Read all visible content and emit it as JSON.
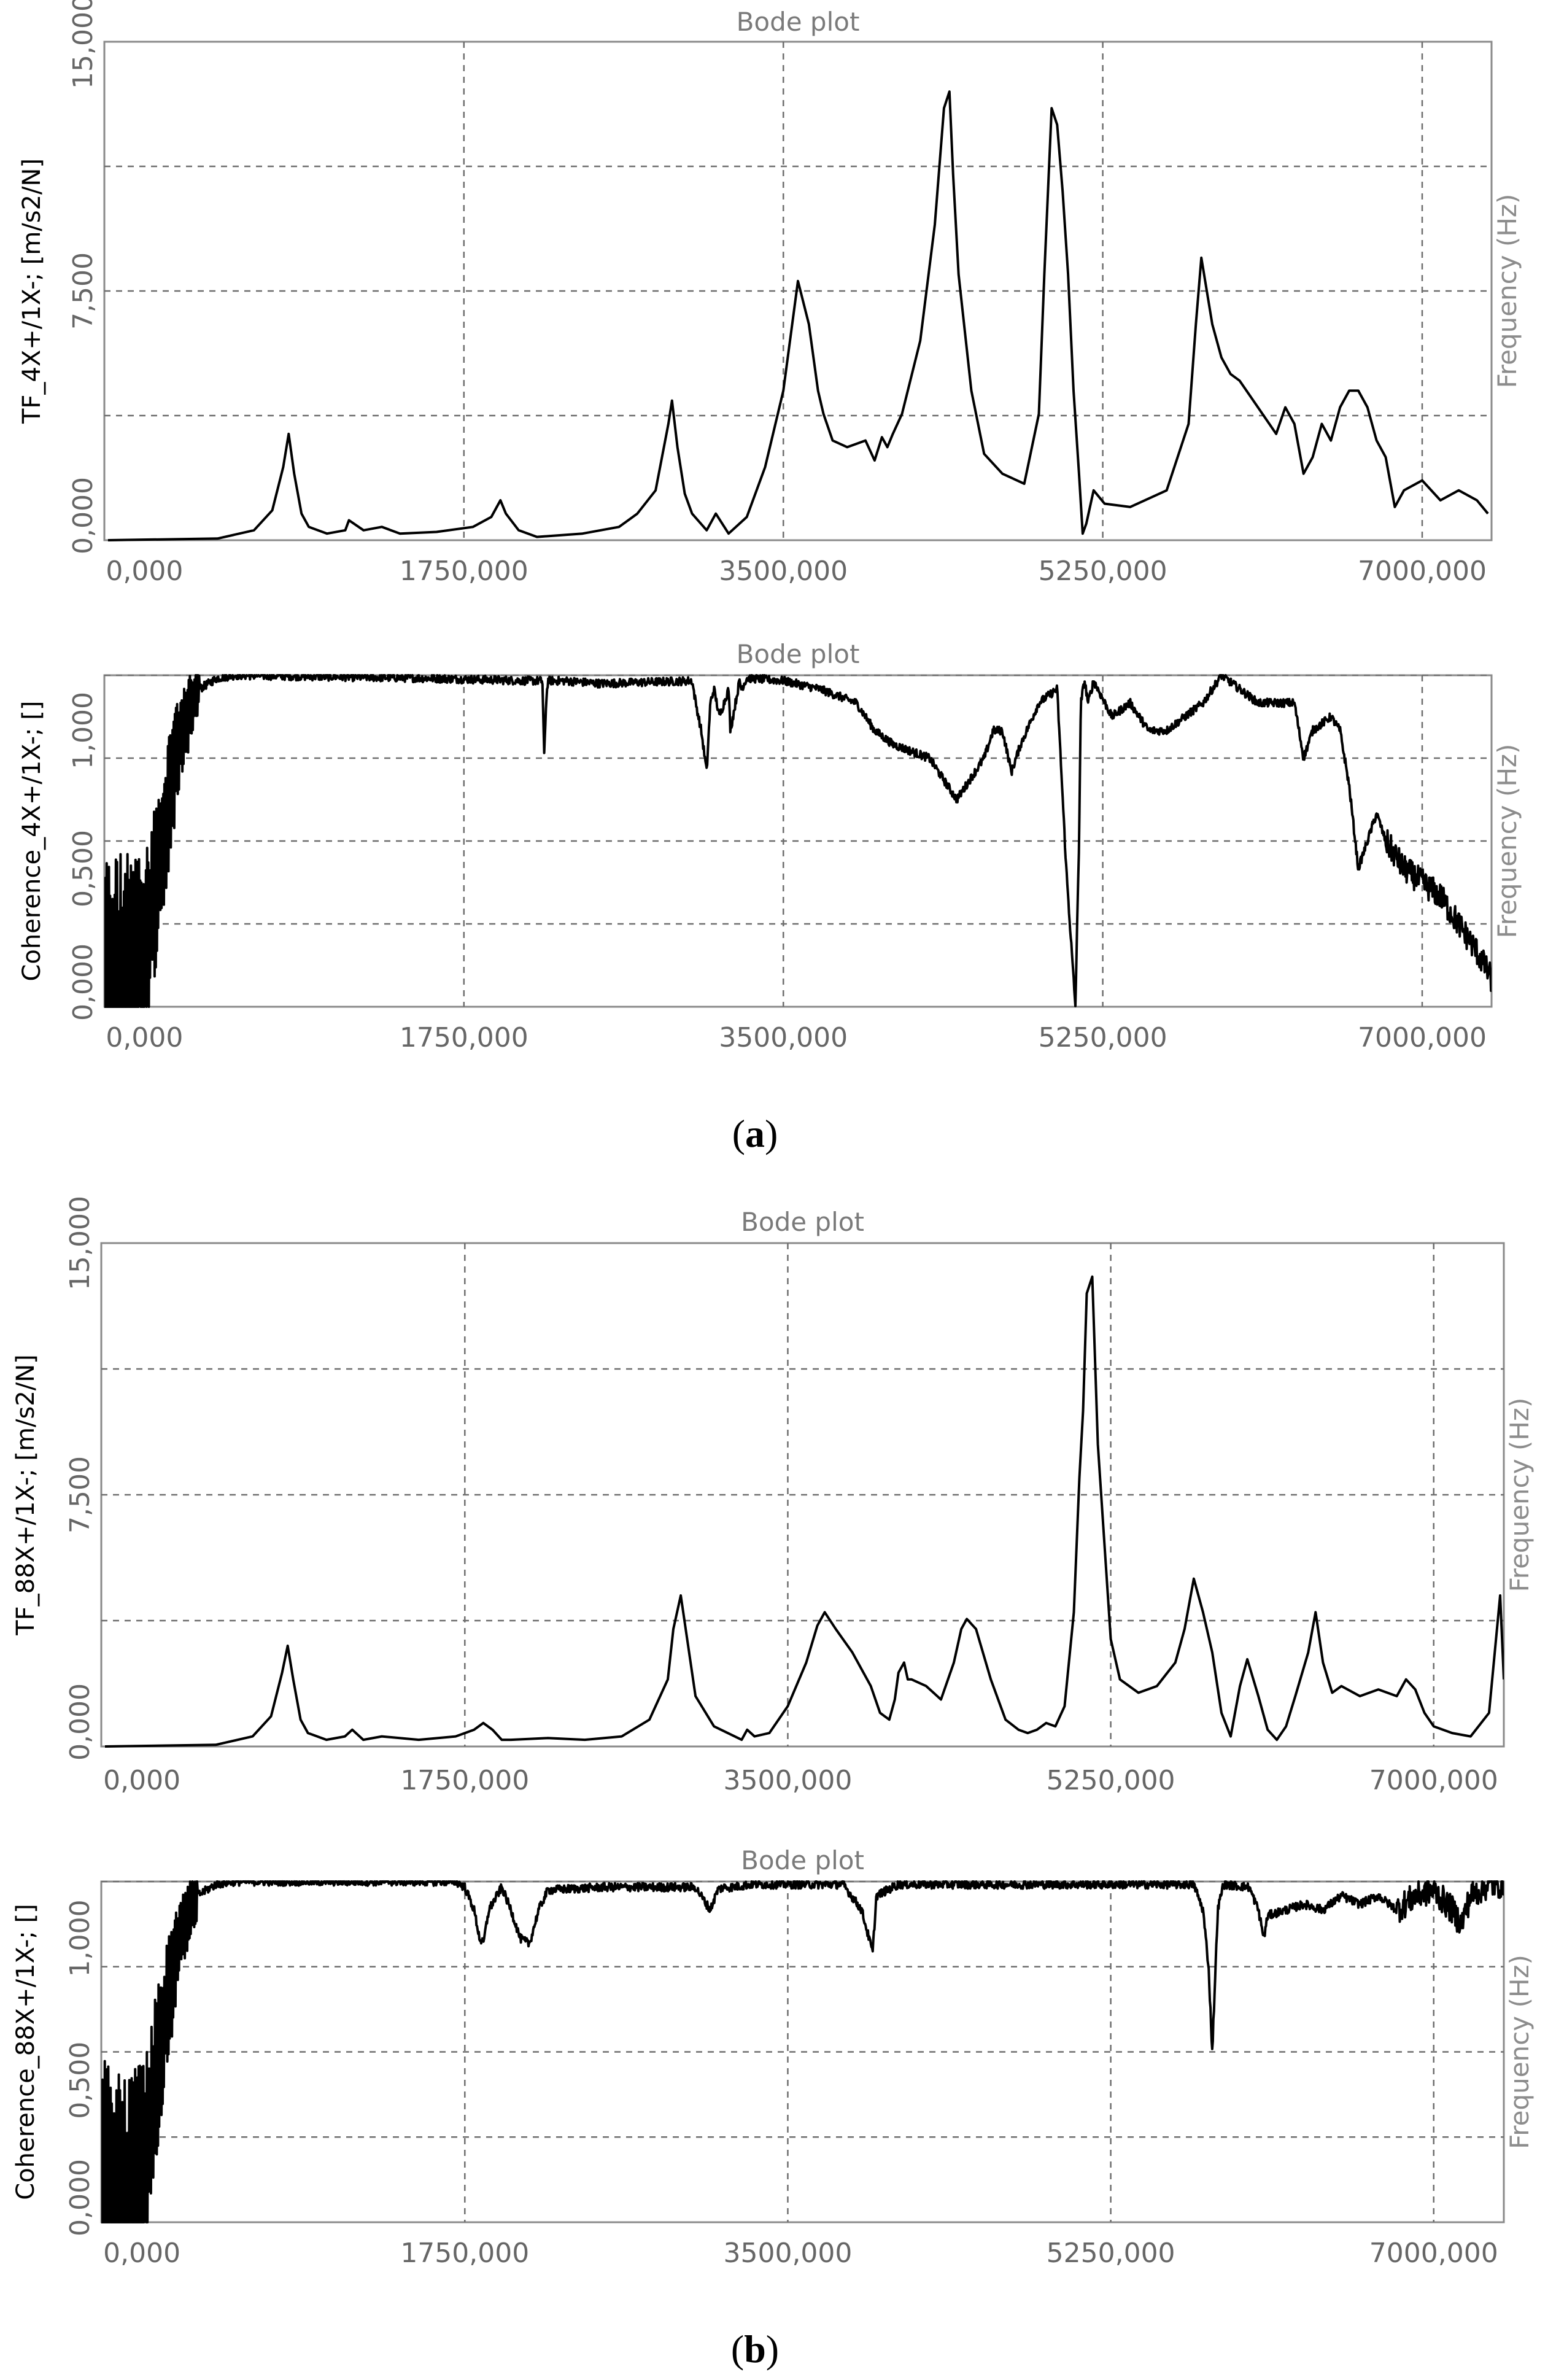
{
  "panels": [
    {
      "id": "a1",
      "title": "Bode plot",
      "ylabel": "TF_4X+/1X-; [m/s2/N]",
      "side_label": "Frequency (Hz)",
      "yticks": [
        "0,000",
        "7,500",
        "15,000"
      ],
      "ytick_values": [
        0,
        7.5,
        15
      ],
      "ylim": [
        0,
        15
      ],
      "xticks": [
        "0,000",
        "1750,000",
        "3500,000",
        "5250,000",
        "7000,000"
      ],
      "xtick_values": [
        0,
        1750,
        3500,
        5250,
        7000
      ],
      "xlim": [
        -220,
        7380
      ],
      "ygrid": [
        3.75,
        7.5,
        11.25
      ],
      "style": "smooth",
      "series": [
        {
          "x": [
            -200,
            400,
            600,
            700,
            760,
            790,
            820,
            860,
            900,
            1000,
            1100,
            1120,
            1200,
            1300,
            1400,
            1600,
            1800,
            1900,
            1950,
            1980,
            2050,
            2150,
            2400,
            2600,
            2700,
            2800,
            2870,
            2890,
            2920,
            2960,
            3000,
            3080,
            3130,
            3200,
            3300,
            3400,
            3500,
            3580,
            3640,
            3690,
            3720,
            3770,
            3850,
            3950,
            4000,
            4040,
            4070,
            4100,
            4150,
            4250,
            4330,
            4380,
            4410,
            4430,
            4460,
            4530,
            4600,
            4700,
            4820,
            4900,
            4930,
            4970,
            5000,
            5030,
            5060,
            5090,
            5120,
            5140,
            5160,
            5200,
            5260,
            5400,
            5600,
            5720,
            5760,
            5790,
            5850,
            5900,
            5950,
            6000,
            6100,
            6200,
            6250,
            6300,
            6350,
            6400,
            6450,
            6500,
            6550,
            6600,
            6650,
            6700,
            6750,
            6800,
            6850,
            6900,
            7000,
            7100,
            7200,
            7300,
            7360
          ],
          "y": [
            0,
            0.05,
            0.3,
            0.9,
            2.2,
            3.2,
            2.0,
            0.8,
            0.4,
            0.2,
            0.3,
            0.6,
            0.3,
            0.4,
            0.2,
            0.25,
            0.4,
            0.7,
            1.2,
            0.8,
            0.3,
            0.1,
            0.2,
            0.4,
            0.8,
            1.5,
            3.5,
            4.2,
            2.8,
            1.4,
            0.8,
            0.3,
            0.8,
            0.2,
            0.7,
            2.2,
            4.5,
            7.8,
            6.5,
            4.5,
            3.8,
            3.0,
            2.8,
            3.0,
            2.4,
            3.1,
            2.8,
            3.2,
            3.8,
            6.0,
            9.5,
            13.0,
            13.5,
            11.0,
            8.0,
            4.5,
            2.6,
            2.0,
            1.7,
            3.8,
            8.0,
            13.0,
            12.5,
            10.5,
            8.0,
            4.5,
            2.0,
            0.2,
            0.5,
            1.5,
            1.1,
            1.0,
            1.5,
            3.5,
            6.5,
            8.5,
            6.5,
            5.5,
            5.0,
            4.8,
            4.0,
            3.2,
            4.0,
            3.5,
            2.0,
            2.5,
            3.5,
            3.0,
            4.0,
            4.5,
            4.5,
            4.0,
            3.0,
            2.5,
            1.0,
            1.5,
            1.8,
            1.2,
            1.5,
            1.2,
            0.8
          ]
        }
      ]
    },
    {
      "id": "a2",
      "title": "Bode plot",
      "ylabel": "Coherence_4X+/1X-; []",
      "side_label": "Frequency (Hz)",
      "yticks": [
        "0,000",
        "0,500",
        "1,000"
      ],
      "ytick_values": [
        0,
        0.5,
        1.0
      ],
      "ylim": [
        0,
        1.2
      ],
      "xticks": [
        "0,000",
        "1750,000",
        "3500,000",
        "5250,000",
        "7000,000"
      ],
      "xtick_values": [
        0,
        1750,
        3500,
        5250,
        7000
      ],
      "xlim": [
        -220,
        7380
      ],
      "ygrid": [
        0.3,
        0.6,
        0.9,
        1.2
      ],
      "style": "noisy",
      "series": [
        {
          "x": [
            -220,
            -100,
            0,
            50,
            100,
            150,
            200,
            300,
            400,
            500,
            1500,
            2100,
            2180,
            2190,
            2200,
            2210,
            2300,
            2500,
            3000,
            3020,
            3050,
            3080,
            3100,
            3120,
            3150,
            3200,
            3210,
            3260,
            3270,
            3300,
            3500,
            3700,
            3900,
            4000,
            4100,
            4300,
            4400,
            4450,
            4500,
            4600,
            4650,
            4700,
            4750,
            4800,
            4900,
            5000,
            5050,
            5100,
            5120,
            5130,
            5150,
            5170,
            5200,
            5300,
            5400,
            5500,
            5600,
            5700,
            5800,
            5900,
            6000,
            6100,
            6200,
            6300,
            6350,
            6400,
            6500,
            6550,
            6600,
            6650,
            6700,
            6750,
            6800,
            6900,
            7000,
            7100,
            7200,
            7300,
            7380
          ],
          "y": [
            0.0,
            0.1,
            0.2,
            0.4,
            0.6,
            0.8,
            1.0,
            1.15,
            1.19,
            1.2,
            1.19,
            1.18,
            1.18,
            0.9,
            1.1,
            1.18,
            1.18,
            1.17,
            1.18,
            1.1,
            1.0,
            0.85,
            1.1,
            1.15,
            1.05,
            1.15,
            1.0,
            1.18,
            1.15,
            1.19,
            1.18,
            1.15,
            1.1,
            1.0,
            0.95,
            0.9,
            0.8,
            0.75,
            0.8,
            0.9,
            1.0,
            1.0,
            0.85,
            0.95,
            1.1,
            1.15,
            0.5,
            0.0,
            0.6,
            1.1,
            1.18,
            1.1,
            1.18,
            1.05,
            1.1,
            1.0,
            1.0,
            1.05,
            1.1,
            1.2,
            1.15,
            1.1,
            1.1,
            1.1,
            0.9,
            1.0,
            1.05,
            1.0,
            0.8,
            0.5,
            0.6,
            0.7,
            0.6,
            0.5,
            0.45,
            0.4,
            0.3,
            0.2,
            0.1
          ]
        }
      ]
    },
    {
      "id": "b1",
      "title": "Bode plot",
      "ylabel": "TF_88X+/1X-; [m/s2/N]",
      "side_label": "Frequency (Hz)",
      "yticks": [
        "0,000",
        "7,500",
        "15,000"
      ],
      "ytick_values": [
        0,
        7.5,
        15
      ],
      "ylim": [
        0,
        15
      ],
      "xticks": [
        "0,000",
        "1750,000",
        "3500,000",
        "5250,000",
        "7000,000"
      ],
      "xtick_values": [
        0,
        1750,
        3500,
        5250,
        7000
      ],
      "xlim": [
        -220,
        7380
      ],
      "ygrid": [
        3.75,
        7.5,
        11.25
      ],
      "style": "smooth",
      "series": [
        {
          "x": [
            -200,
            400,
            600,
            700,
            760,
            790,
            820,
            860,
            900,
            1000,
            1100,
            1140,
            1200,
            1300,
            1500,
            1700,
            1800,
            1850,
            1900,
            1950,
            2000,
            2200,
            2400,
            2600,
            2750,
            2850,
            2880,
            2920,
            2960,
            3000,
            3100,
            3250,
            3280,
            3320,
            3400,
            3500,
            3600,
            3660,
            3700,
            3760,
            3850,
            3950,
            4000,
            4050,
            4080,
            4100,
            4130,
            4150,
            4170,
            4250,
            4330,
            4400,
            4440,
            4470,
            4520,
            4600,
            4680,
            4750,
            4800,
            4850,
            4900,
            4950,
            5000,
            5050,
            5080,
            5100,
            5120,
            5150,
            5180,
            5250,
            5300,
            5400,
            5500,
            5600,
            5650,
            5700,
            5750,
            5800,
            5850,
            5900,
            5950,
            5990,
            6050,
            6100,
            6150,
            6200,
            6250,
            6320,
            6360,
            6400,
            6450,
            6500,
            6600,
            6700,
            6800,
            6850,
            6900,
            6950,
            7000,
            7100,
            7200,
            7300,
            7360,
            7380
          ],
          "y": [
            0,
            0.05,
            0.3,
            0.9,
            2.2,
            3.0,
            2.0,
            0.8,
            0.4,
            0.2,
            0.3,
            0.5,
            0.2,
            0.3,
            0.2,
            0.3,
            0.5,
            0.7,
            0.5,
            0.2,
            0.2,
            0.25,
            0.2,
            0.3,
            0.8,
            2.0,
            3.5,
            4.5,
            3.0,
            1.5,
            0.6,
            0.2,
            0.5,
            0.3,
            0.4,
            1.2,
            2.5,
            3.6,
            4.0,
            3.5,
            2.8,
            1.8,
            1.0,
            0.8,
            1.4,
            2.2,
            2.5,
            2.0,
            2.0,
            1.8,
            1.4,
            2.5,
            3.5,
            3.8,
            3.5,
            2.0,
            0.8,
            0.5,
            0.4,
            0.5,
            0.7,
            0.6,
            1.2,
            4.0,
            8.0,
            10.0,
            13.5,
            14.0,
            9.0,
            3.2,
            2.0,
            1.6,
            1.8,
            2.5,
            3.5,
            5.0,
            4.0,
            2.8,
            1.0,
            0.3,
            1.8,
            2.6,
            1.5,
            0.5,
            0.2,
            0.6,
            1.5,
            2.8,
            4.0,
            2.5,
            1.6,
            1.8,
            1.5,
            1.7,
            1.5,
            2.0,
            1.7,
            1.0,
            0.6,
            0.4,
            0.3,
            1.0,
            4.5,
            2.0
          ]
        }
      ]
    },
    {
      "id": "b2",
      "title": "Bode plot",
      "ylabel": "Coherence_88X+/1X-; []",
      "side_label": "Frequency (Hz)",
      "yticks": [
        "0,000",
        "0,500",
        "1,000"
      ],
      "ytick_values": [
        0,
        0.5,
        1.0
      ],
      "ylim": [
        0,
        1.2
      ],
      "xticks": [
        "0,000",
        "1750,000",
        "3500,000",
        "5250,000",
        "7000,000"
      ],
      "xtick_values": [
        0,
        1750,
        3500,
        5250,
        7000
      ],
      "xlim": [
        -220,
        7380
      ],
      "ygrid": [
        0.3,
        0.6,
        0.9,
        1.2
      ],
      "style": "noisy",
      "series": [
        {
          "x": [
            -220,
            -100,
            0,
            50,
            100,
            150,
            200,
            300,
            400,
            500,
            1700,
            1750,
            1800,
            1830,
            1850,
            1880,
            1950,
            2000,
            2050,
            2100,
            2150,
            2200,
            2500,
            3000,
            3080,
            3120,
            3150,
            3200,
            3300,
            3500,
            3800,
            3900,
            3940,
            3960,
            3980,
            4100,
            4500,
            5000,
            5500,
            5700,
            5750,
            5780,
            5800,
            5830,
            5860,
            6000,
            6050,
            6080,
            6100,
            6200,
            6300,
            6400,
            6500,
            6600,
            6700,
            6800,
            6900,
            7000,
            7100,
            7150,
            7200,
            7300,
            7380
          ],
          "y": [
            0.0,
            0.1,
            0.2,
            0.4,
            0.6,
            0.8,
            1.0,
            1.15,
            1.19,
            1.2,
            1.2,
            1.18,
            1.1,
            1.0,
            0.98,
            1.1,
            1.18,
            1.1,
            1.0,
            0.98,
            1.1,
            1.17,
            1.18,
            1.18,
            1.1,
            1.17,
            1.18,
            1.18,
            1.19,
            1.19,
            1.19,
            1.1,
            1.0,
            0.95,
            1.15,
            1.19,
            1.19,
            1.19,
            1.19,
            1.19,
            1.1,
            0.9,
            0.6,
            1.1,
            1.19,
            1.18,
            1.1,
            1.0,
            1.08,
            1.1,
            1.12,
            1.1,
            1.15,
            1.12,
            1.15,
            1.1,
            1.15,
            1.17,
            1.1,
            1.05,
            1.15,
            1.19,
            1.19
          ]
        }
      ]
    }
  ],
  "captions": [
    {
      "id": "a",
      "text": "a"
    },
    {
      "id": "b",
      "text": "b"
    }
  ]
}
